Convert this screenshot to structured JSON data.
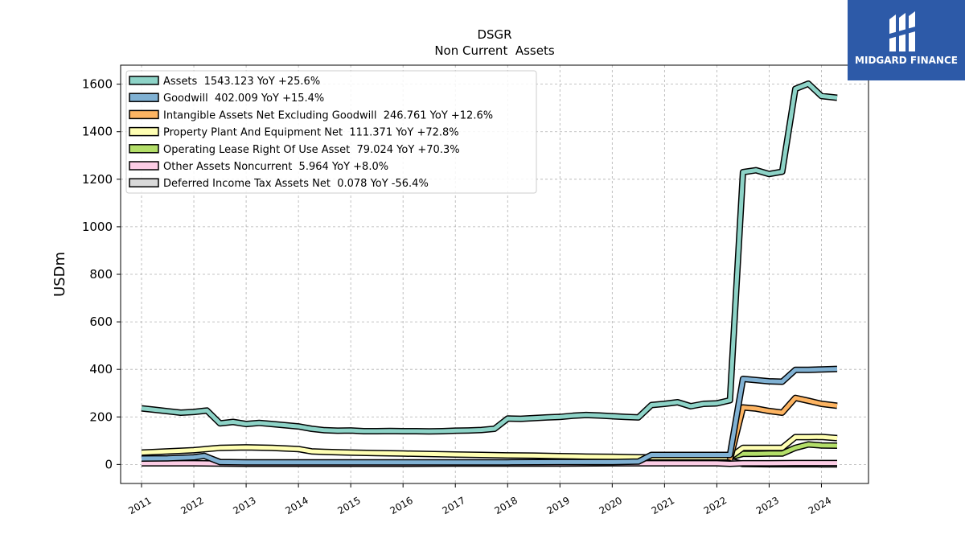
{
  "brand": {
    "name": "MIDGARD FINANCE"
  },
  "chart_data": {
    "type": "line",
    "title": "DSGR",
    "subtitle": "Non Current  Assets",
    "ylabel": "USDm",
    "xlabel": "",
    "ylim": [
      -80,
      1680
    ],
    "xlim": [
      2010.6,
      2024.9
    ],
    "yticks": [
      0,
      200,
      400,
      600,
      800,
      1000,
      1200,
      1400,
      1600
    ],
    "xticks": [
      "2011",
      "2012",
      "2013",
      "2014",
      "2015",
      "2016",
      "2017",
      "2018",
      "2019",
      "2020",
      "2021",
      "2022",
      "2023",
      "2024"
    ],
    "grid": true,
    "legend_position": "top-left",
    "series": [
      {
        "name": "Assets  1543.123 YoY +25.6%",
        "color": "#8dd3c7",
        "x": [
          2011.0,
          2011.25,
          2011.5,
          2011.75,
          2012.0,
          2012.25,
          2012.5,
          2012.75,
          2013.0,
          2013.25,
          2013.5,
          2013.75,
          2014.0,
          2014.25,
          2014.5,
          2014.75,
          2015.0,
          2015.25,
          2015.5,
          2015.75,
          2016.0,
          2016.25,
          2016.5,
          2016.75,
          2017.0,
          2017.25,
          2017.5,
          2017.75,
          2018.0,
          2018.25,
          2018.5,
          2018.75,
          2019.0,
          2019.25,
          2019.5,
          2019.75,
          2020.0,
          2020.25,
          2020.5,
          2020.75,
          2021.0,
          2021.25,
          2021.5,
          2021.75,
          2022.0,
          2022.25,
          2022.5,
          2022.75,
          2023.0,
          2023.25,
          2023.5,
          2023.75,
          2024.0,
          2024.3
        ],
        "values": [
          236,
          230,
          224,
          218,
          221,
          227,
          173,
          179,
          170,
          175,
          170,
          165,
          160,
          150,
          144,
          142,
          143,
          140,
          140,
          141,
          140,
          140,
          139,
          140,
          142,
          143,
          145,
          150,
          193,
          192,
          195,
          198,
          200,
          205,
          208,
          206,
          203,
          200,
          198,
          250,
          255,
          262,
          245,
          255,
          257,
          270,
          1230,
          1238,
          1222,
          1232,
          1580,
          1602,
          1550,
          1543
        ]
      },
      {
        "name": "Goodwill  402.009 YoY +15.4%",
        "color": "#80b1d3",
        "x": [
          2011.0,
          2011.5,
          2012.0,
          2012.2,
          2012.5,
          2013.0,
          2014.0,
          2015.0,
          2016.0,
          2017.0,
          2018.0,
          2019.0,
          2020.0,
          2020.5,
          2020.75,
          2021.0,
          2021.5,
          2022.0,
          2022.25,
          2022.5,
          2022.75,
          2023.0,
          2023.25,
          2023.5,
          2023.75,
          2024.0,
          2024.3
        ],
        "values": [
          25,
          26,
          30,
          36,
          10,
          9,
          9,
          9,
          9,
          9,
          9,
          10,
          10,
          12,
          40,
          40,
          40,
          40,
          40,
          360,
          355,
          350,
          348,
          398,
          398,
          400,
          402
        ]
      },
      {
        "name": "Intangible Assets Net Excluding Goodwill  246.761 YoY +12.6%",
        "color": "#fdb462",
        "x": [
          2022.25,
          2022.5,
          2022.75,
          2023.0,
          2023.25,
          2023.5,
          2023.75,
          2024.0,
          2024.3
        ],
        "values": [
          20,
          240,
          235,
          225,
          218,
          280,
          268,
          255,
          247
        ]
      },
      {
        "name": "Property Plant And Equipment Net  111.371 YoY +72.8%",
        "color": "#ffffb3",
        "x": [
          2011.0,
          2011.5,
          2012.0,
          2012.5,
          2013.0,
          2013.5,
          2014.0,
          2014.25,
          2014.5,
          2015.0,
          2015.5,
          2016.0,
          2016.5,
          2017.0,
          2017.5,
          2018.0,
          2018.5,
          2019.0,
          2019.25,
          2019.5,
          2020.0,
          2020.5,
          2021.0,
          2021.5,
          2022.0,
          2022.25,
          2022.5,
          2022.75,
          2023.0,
          2023.25,
          2023.5,
          2023.75,
          2024.0,
          2024.3
        ],
        "values": [
          50,
          55,
          60,
          70,
          72,
          70,
          65,
          55,
          53,
          50,
          48,
          46,
          44,
          42,
          40,
          38,
          37,
          35,
          34,
          33,
          32,
          30,
          30,
          30,
          30,
          30,
          70,
          70,
          70,
          70,
          115,
          115,
          116,
          111
        ]
      },
      {
        "name": "Operating Lease Right Of Use Asset  79.024 YoY +70.3%",
        "color": "#b3de69",
        "x": [
          2022.25,
          2022.5,
          2022.75,
          2023.0,
          2023.25,
          2023.5,
          2023.75,
          2024.0,
          2024.3
        ],
        "values": [
          30,
          45,
          45,
          46,
          46,
          70,
          84,
          80,
          79
        ]
      },
      {
        "name": "Other Assets Noncurrent  5.964 YoY +8.0%",
        "color": "#fccde5",
        "x": [
          2011.0,
          2011.5,
          2012.0,
          2012.5,
          2013.0,
          2014.0,
          2015.0,
          2016.0,
          2017.0,
          2018.0,
          2019.0,
          2020.0,
          2020.5,
          2021.0,
          2021.5,
          2022.0,
          2022.25,
          2022.5,
          2023.0,
          2023.5,
          2024.0,
          2024.3
        ],
        "values": [
          5,
          5,
          5,
          4,
          3,
          3,
          3,
          3,
          4,
          4,
          4,
          5,
          5,
          5,
          5,
          5,
          3,
          5,
          5,
          6,
          6,
          6
        ]
      },
      {
        "name": "Deferred Income Tax Assets Net  0.078 YoY -56.4%",
        "color": "#d9d9d9",
        "x": [
          2020.0,
          2020.25,
          2020.5,
          2020.75,
          2021.0,
          2021.5,
          2022.0,
          2022.25,
          2022.5,
          2023.0,
          2023.5,
          2024.0,
          2024.3
        ],
        "values": [
          25,
          22,
          22,
          20,
          20,
          20,
          20,
          15,
          2,
          1,
          1,
          0.5,
          0.078
        ]
      }
    ]
  }
}
